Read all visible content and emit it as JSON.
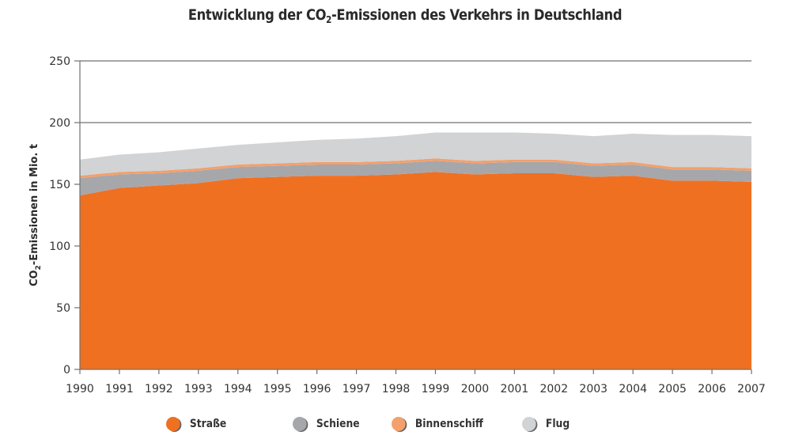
{
  "chart_data": {
    "type": "area",
    "stacked": true,
    "title_parts": {
      "before": "Entwicklung der CO",
      "sub": "2",
      "after": "-Emissionen des Verkehrs in Deutschland"
    },
    "title": "Entwicklung der CO2-Emissionen des Verkehrs in Deutschland",
    "xlabel": "",
    "ylabel_parts": {
      "before": "CO",
      "sub": "2",
      "after": "-Emissionen in Mio. t"
    },
    "ylabel": "CO2-Emissionen in Mio. t",
    "ylim": [
      0,
      250
    ],
    "yticks": [
      0,
      50,
      100,
      150,
      200,
      250
    ],
    "grid": "horizontal at 200 and 250",
    "legend_position": "bottom",
    "x": [
      "1990",
      "1991",
      "1992",
      "1993",
      "1994",
      "1995",
      "1996",
      "1997",
      "1998",
      "1999",
      "2000",
      "2001",
      "2002",
      "2003",
      "2004",
      "2005",
      "2006",
      "2007"
    ],
    "series": [
      {
        "name": "Straße",
        "color": "#f07022",
        "values": [
          141,
          147,
          149,
          151,
          155,
          156,
          157,
          157,
          158,
          160,
          158,
          159,
          159,
          156,
          157,
          153,
          153,
          152
        ]
      },
      {
        "name": "Schiene",
        "color": "#a6a7ab",
        "values": [
          14,
          11,
          10,
          10,
          9,
          9,
          9,
          9,
          9,
          9,
          9,
          9,
          9,
          9,
          9,
          9,
          9,
          9
        ]
      },
      {
        "name": "Binnenschiff",
        "color": "#f3a06c",
        "values": [
          2,
          2,
          2,
          2,
          2,
          2,
          2,
          2,
          2,
          2,
          2,
          2,
          2,
          2,
          2,
          2,
          2,
          2
        ]
      },
      {
        "name": "Flug",
        "color": "#d1d3d5",
        "values": [
          13,
          14,
          15,
          16,
          16,
          17,
          18,
          19,
          20,
          21,
          23,
          22,
          21,
          22,
          23,
          26,
          26,
          26
        ]
      }
    ]
  }
}
